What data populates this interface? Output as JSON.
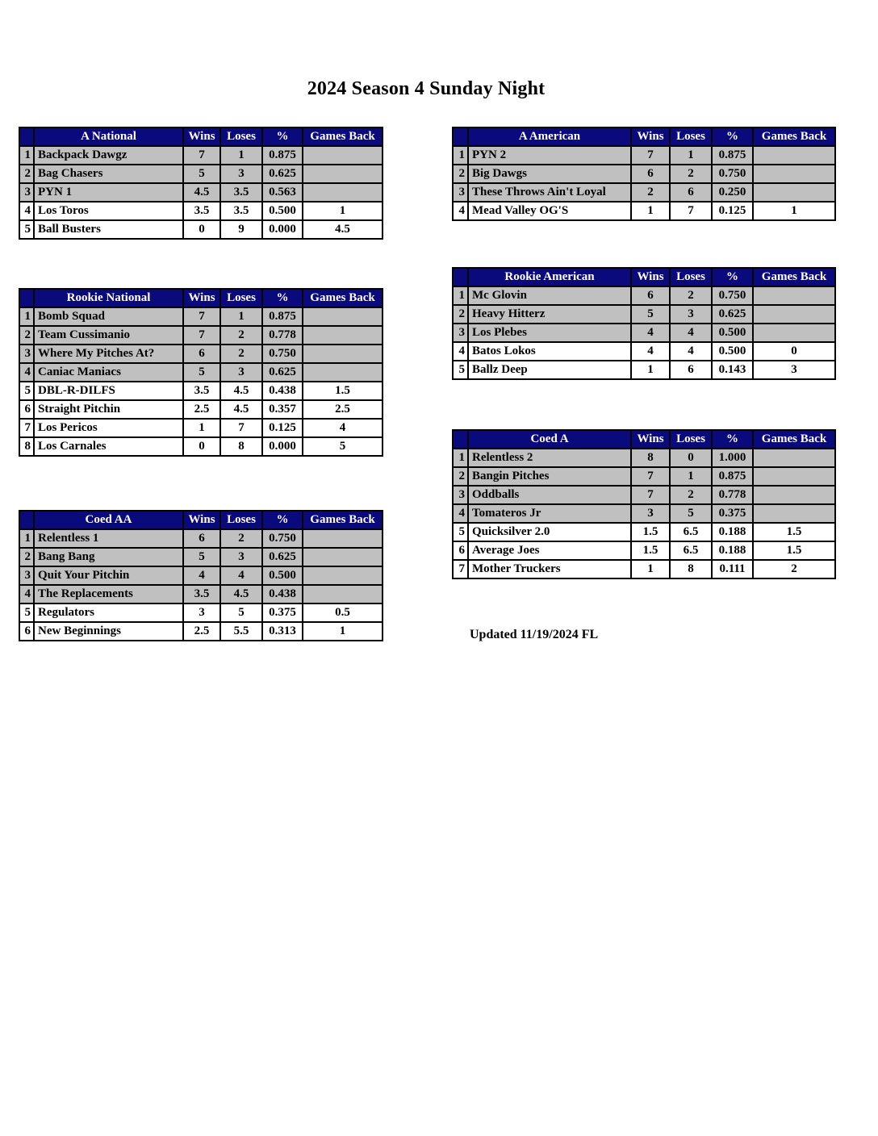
{
  "page": {
    "title": "2024 Season 4 Sunday Night",
    "updated_note": "Updated 11/19/2024 FL"
  },
  "colors": {
    "header_bg": "#0a0a7d",
    "header_text": "#ffffff",
    "shaded_row": "#c0c0c0",
    "border": "#000000"
  },
  "columns": [
    "Wins",
    "Loses",
    "%",
    "Games Back"
  ],
  "tables": [
    {
      "name": "A National",
      "rows": [
        {
          "rank": "1",
          "team": "Backpack Dawgz",
          "wins": "7",
          "loses": "1",
          "pct": "0.875",
          "games_back": "",
          "shaded": true
        },
        {
          "rank": "2",
          "team": "Bag Chasers",
          "wins": "5",
          "loses": "3",
          "pct": "0.625",
          "games_back": "",
          "shaded": true
        },
        {
          "rank": "3",
          "team": "PYN 1",
          "wins": "4.5",
          "loses": "3.5",
          "pct": "0.563",
          "games_back": "",
          "shaded": true
        },
        {
          "rank": "4",
          "team": "Los Toros",
          "wins": "3.5",
          "loses": "3.5",
          "pct": "0.500",
          "games_back": "1",
          "shaded": false
        },
        {
          "rank": "5",
          "team": "Ball Busters",
          "wins": "0",
          "loses": "9",
          "pct": "0.000",
          "games_back": "4.5",
          "shaded": false
        }
      ]
    },
    {
      "name": "A American",
      "rows": [
        {
          "rank": "1",
          "team": "PYN 2",
          "wins": "7",
          "loses": "1",
          "pct": "0.875",
          "games_back": "",
          "shaded": true
        },
        {
          "rank": "2",
          "team": "Big Dawgs",
          "wins": "6",
          "loses": "2",
          "pct": "0.750",
          "games_back": "",
          "shaded": true
        },
        {
          "rank": "3",
          "team": "These Throws Ain't Loyal",
          "wins": "2",
          "loses": "6",
          "pct": "0.250",
          "games_back": "",
          "shaded": true
        },
        {
          "rank": "4",
          "team": "Mead Valley OG'S",
          "wins": "1",
          "loses": "7",
          "pct": "0.125",
          "games_back": "1",
          "shaded": false
        }
      ]
    },
    {
      "name": "Rookie National",
      "rows": [
        {
          "rank": "1",
          "team": "Bomb Squad",
          "wins": "7",
          "loses": "1",
          "pct": "0.875",
          "games_back": "",
          "shaded": true
        },
        {
          "rank": "2",
          "team": "Team Cussimanio",
          "wins": "7",
          "loses": "2",
          "pct": "0.778",
          "games_back": "",
          "shaded": true
        },
        {
          "rank": "3",
          "team": "Where My Pitches At?",
          "wins": "6",
          "loses": "2",
          "pct": "0.750",
          "games_back": "",
          "shaded": true
        },
        {
          "rank": "4",
          "team": "Caniac Maniacs",
          "wins": "5",
          "loses": "3",
          "pct": "0.625",
          "games_back": "",
          "shaded": true
        },
        {
          "rank": "5",
          "team": "DBL-R-DILFS",
          "wins": "3.5",
          "loses": "4.5",
          "pct": "0.438",
          "games_back": "1.5",
          "shaded": false
        },
        {
          "rank": "6",
          "team": "Straight Pitchin",
          "wins": "2.5",
          "loses": "4.5",
          "pct": "0.357",
          "games_back": "2.5",
          "shaded": false
        },
        {
          "rank": "7",
          "team": "Los Pericos",
          "wins": "1",
          "loses": "7",
          "pct": "0.125",
          "games_back": "4",
          "shaded": false
        },
        {
          "rank": "8",
          "team": "Los Carnales",
          "wins": "0",
          "loses": "8",
          "pct": "0.000",
          "games_back": "5",
          "shaded": false
        }
      ]
    },
    {
      "name": "Rookie American",
      "rows": [
        {
          "rank": "1",
          "team": "Mc Glovin",
          "wins": "6",
          "loses": "2",
          "pct": "0.750",
          "games_back": "",
          "shaded": true
        },
        {
          "rank": "2",
          "team": "Heavy Hitterz",
          "wins": "5",
          "loses": "3",
          "pct": "0.625",
          "games_back": "",
          "shaded": true
        },
        {
          "rank": "3",
          "team": "Los Plebes",
          "wins": "4",
          "loses": "4",
          "pct": "0.500",
          "games_back": "",
          "shaded": true
        },
        {
          "rank": "4",
          "team": "Batos Lokos",
          "wins": "4",
          "loses": "4",
          "pct": "0.500",
          "games_back": "0",
          "shaded": false
        },
        {
          "rank": "5",
          "team": "Ballz Deep",
          "wins": "1",
          "loses": "6",
          "pct": "0.143",
          "games_back": "3",
          "shaded": false
        }
      ]
    },
    {
      "name": "Coed AA",
      "rows": [
        {
          "rank": "1",
          "team": "Relentless 1",
          "wins": "6",
          "loses": "2",
          "pct": "0.750",
          "games_back": "",
          "shaded": true
        },
        {
          "rank": "2",
          "team": "Bang Bang",
          "wins": "5",
          "loses": "3",
          "pct": "0.625",
          "games_back": "",
          "shaded": true
        },
        {
          "rank": "3",
          "team": "Quit Your Pitchin",
          "wins": "4",
          "loses": "4",
          "pct": "0.500",
          "games_back": "",
          "shaded": true
        },
        {
          "rank": "4",
          "team": "The Replacements",
          "wins": "3.5",
          "loses": "4.5",
          "pct": "0.438",
          "games_back": "",
          "shaded": true
        },
        {
          "rank": "5",
          "team": "Regulators",
          "wins": "3",
          "loses": "5",
          "pct": "0.375",
          "games_back": "0.5",
          "shaded": false
        },
        {
          "rank": "6",
          "team": "New Beginnings",
          "wins": "2.5",
          "loses": "5.5",
          "pct": "0.313",
          "games_back": "1",
          "shaded": false
        }
      ]
    },
    {
      "name": "Coed A",
      "rows": [
        {
          "rank": "1",
          "team": "Relentless 2",
          "wins": "8",
          "loses": "0",
          "pct": "1.000",
          "games_back": "",
          "shaded": true
        },
        {
          "rank": "2",
          "team": "Bangin Pitches",
          "wins": "7",
          "loses": "1",
          "pct": "0.875",
          "games_back": "",
          "shaded": true
        },
        {
          "rank": "3",
          "team": "Oddballs",
          "wins": "7",
          "loses": "2",
          "pct": "0.778",
          "games_back": "",
          "shaded": true
        },
        {
          "rank": "4",
          "team": "Tomateros Jr",
          "wins": "3",
          "loses": "5",
          "pct": "0.375",
          "games_back": "",
          "shaded": true
        },
        {
          "rank": "5",
          "team": "Quicksilver 2.0",
          "wins": "1.5",
          "loses": "6.5",
          "pct": "0.188",
          "games_back": "1.5",
          "shaded": false
        },
        {
          "rank": "6",
          "team": "Average Joes",
          "wins": "1.5",
          "loses": "6.5",
          "pct": "0.188",
          "games_back": "1.5",
          "shaded": false
        },
        {
          "rank": "7",
          "team": "Mother Truckers",
          "wins": "1",
          "loses": "8",
          "pct": "0.111",
          "games_back": "2",
          "shaded": false
        }
      ]
    }
  ]
}
